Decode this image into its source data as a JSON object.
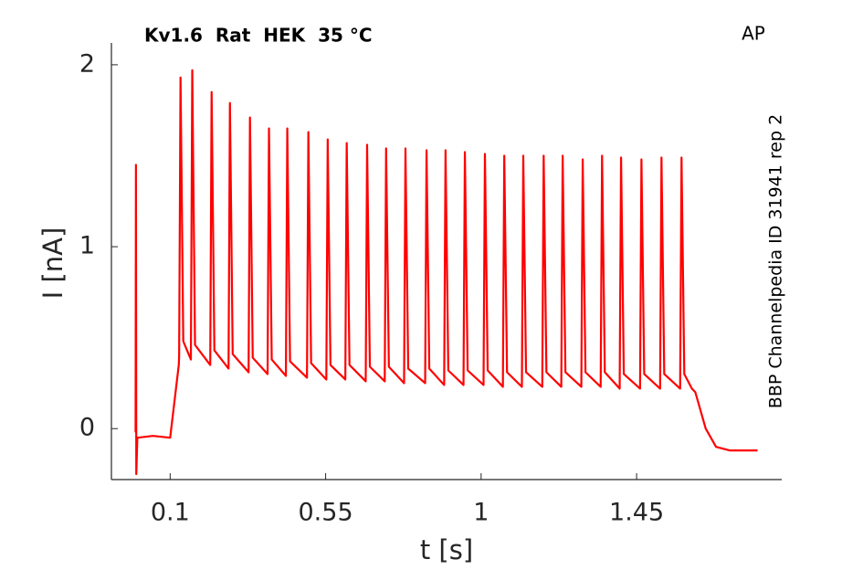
{
  "chart_data": {
    "type": "line",
    "title": "Kv1.6  Rat  HEK  35 °C",
    "annotations": [
      "AP",
      "BBP Channelpedia ID 31941 rep 2"
    ],
    "x_label": "t [s]",
    "y_label": "I [nA]",
    "color": "#ff0000",
    "xlim": [
      -0.07,
      1.87
    ],
    "ylim": [
      -0.28,
      2.12
    ],
    "xticks": [
      0.1,
      0.55,
      1,
      1.45
    ],
    "yticks": [
      0,
      1,
      2
    ],
    "x": [
      0,
      0.001,
      0.002,
      0.005,
      0.05,
      0.1,
      0.125,
      0.126,
      0.13,
      0.138,
      0.16,
      0.164,
      0.172,
      0.216,
      0.22,
      0.228,
      0.269,
      0.273,
      0.281,
      0.327,
      0.331,
      0.339,
      0.382,
      0.386,
      0.394,
      0.435,
      0.439,
      0.447,
      0.496,
      0.5,
      0.508,
      0.552,
      0.556,
      0.564,
      0.607,
      0.611,
      0.619,
      0.666,
      0.67,
      0.678,
      0.721,
      0.725,
      0.733,
      0.777,
      0.781,
      0.789,
      0.838,
      0.842,
      0.85,
      0.893,
      0.897,
      0.905,
      0.949,
      0.953,
      0.961,
      1.007,
      1.011,
      1.019,
      1.063,
      1.067,
      1.075,
      1.118,
      1.122,
      1.13,
      1.177,
      1.181,
      1.189,
      1.232,
      1.236,
      1.244,
      1.29,
      1.294,
      1.302,
      1.346,
      1.35,
      1.358,
      1.401,
      1.405,
      1.413,
      1.46,
      1.464,
      1.472,
      1.518,
      1.522,
      1.53,
      1.576,
      1.58,
      1.588,
      1.61,
      1.62,
      1.65,
      1.68,
      1.72,
      1.8
    ],
    "values": [
      -0.02,
      1.45,
      -0.25,
      -0.05,
      -0.04,
      -0.05,
      0.35,
      0.4,
      1.93,
      0.48,
      0.38,
      1.97,
      0.46,
      0.35,
      1.85,
      0.43,
      0.33,
      1.79,
      0.41,
      0.31,
      1.71,
      0.39,
      0.3,
      1.65,
      0.38,
      0.29,
      1.65,
      0.37,
      0.28,
      1.63,
      0.36,
      0.27,
      1.59,
      0.35,
      0.27,
      1.57,
      0.35,
      0.26,
      1.56,
      0.34,
      0.26,
      1.54,
      0.34,
      0.25,
      1.54,
      0.33,
      0.25,
      1.53,
      0.33,
      0.24,
      1.53,
      0.32,
      0.24,
      1.52,
      0.32,
      0.24,
      1.51,
      0.32,
      0.23,
      1.5,
      0.31,
      0.23,
      1.5,
      0.31,
      0.23,
      1.5,
      0.31,
      0.23,
      1.5,
      0.31,
      0.23,
      1.48,
      0.31,
      0.23,
      1.5,
      0.31,
      0.22,
      1.49,
      0.3,
      0.22,
      1.48,
      0.3,
      0.22,
      1.49,
      0.3,
      0.22,
      1.49,
      0.3,
      0.22,
      0.2,
      0,
      -0.1,
      -0.12,
      -0.12
    ]
  }
}
